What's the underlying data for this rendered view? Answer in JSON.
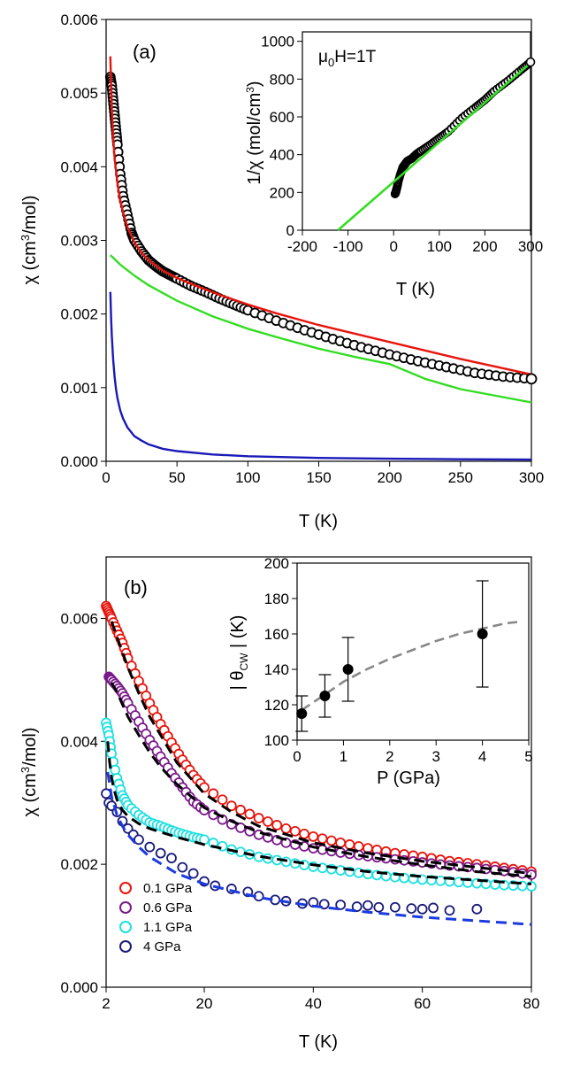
{
  "chart_data": [
    {
      "panel": "(a)",
      "type": "line",
      "xlabel": "T (K)",
      "ylabel_parts": {
        "chi": "χ",
        "unit_open": " (cm",
        "exp": "3",
        "unit_close": "/mol)"
      },
      "xlim": [
        0,
        300
      ],
      "ylim": [
        0,
        0.006
      ],
      "xticks": [
        "0",
        "50",
        "100",
        "150",
        "200",
        "250",
        "300"
      ],
      "yticks": [
        "0.000",
        "0.001",
        "0.002",
        "0.003",
        "0.004",
        "0.005",
        "0.006"
      ],
      "series": [
        {
          "role": "data",
          "marker": "open-circle",
          "color": "#000000",
          "x": [
            3,
            4,
            5,
            6,
            7,
            8,
            10,
            12,
            15,
            18,
            20,
            25,
            30,
            35,
            40,
            45,
            50,
            60,
            70,
            80,
            90,
            100,
            120,
            140,
            160,
            180,
            200,
            220,
            240,
            260,
            280,
            300
          ],
          "y": [
            0.00522,
            0.0051,
            0.0049,
            0.0047,
            0.0045,
            0.0043,
            0.0039,
            0.0036,
            0.00335,
            0.0031,
            0.003,
            0.00285,
            0.00273,
            0.00265,
            0.00258,
            0.00253,
            0.00248,
            0.00238,
            0.0023,
            0.00221,
            0.00213,
            0.00205,
            0.00191,
            0.00178,
            0.00166,
            0.00155,
            0.00145,
            0.00136,
            0.00128,
            0.0012,
            0.00115,
            0.00112
          ]
        },
        {
          "role": "fit-total",
          "line": "solid",
          "color": "#e8140c",
          "x": [
            3,
            4,
            5,
            6,
            8,
            10,
            12,
            15,
            20,
            25,
            30,
            40,
            50,
            60,
            80,
            100,
            120,
            150,
            200,
            250,
            300
          ],
          "y": [
            0.0055,
            0.0048,
            0.0044,
            0.00412,
            0.00378,
            0.00355,
            0.00338,
            0.00318,
            0.00297,
            0.00283,
            0.00273,
            0.00259,
            0.00249,
            0.00241,
            0.00226,
            0.00213,
            0.00201,
            0.00185,
            0.00162,
            0.00139,
            0.00118
          ]
        },
        {
          "role": "fit-curie-weiss",
          "line": "solid",
          "color": "#33dd22",
          "x": [
            3,
            10,
            20,
            30,
            50,
            75,
            100,
            125,
            150,
            175,
            200,
            225,
            250,
            275,
            300
          ],
          "y": [
            0.0028,
            0.00267,
            0.00252,
            0.00239,
            0.00218,
            0.00197,
            0.0018,
            0.00166,
            0.00153,
            0.00142,
            0.00132,
            0.00112,
            0.00098,
            0.00089,
            0.0008
          ]
        },
        {
          "role": "fit-impurity",
          "line": "solid",
          "color": "#1a1ab8",
          "x": [
            3,
            3.5,
            4,
            5,
            6,
            7,
            8,
            10,
            12,
            15,
            20,
            25,
            30,
            40,
            50,
            75,
            100,
            150,
            200,
            250,
            300
          ],
          "y": [
            0.0023,
            0.00197,
            0.00172,
            0.00138,
            0.00115,
            0.00098,
            0.00086,
            0.00069,
            0.00058,
            0.00046,
            0.00034,
            0.00028,
            0.00023,
            0.00017,
            0.000138,
            9.2e-05,
            6.9e-05,
            4.6e-05,
            3.5e-05,
            2.8e-05,
            2.3e-05
          ]
        }
      ],
      "inset": {
        "annotation": {
          "mu": "μ",
          "sub": "0",
          "rest": "H=1T"
        },
        "xlabel": "T (K)",
        "ylabel_parts": {
          "pre": "1/",
          "chi": "χ",
          "unit_open": "  (mol/cm",
          "exp": "3",
          "unit_close": ")"
        },
        "xlim": [
          -200,
          300
        ],
        "ylim": [
          0,
          1050
        ],
        "xticks": [
          "-200",
          "-100",
          "0",
          "100",
          "200",
          "300"
        ],
        "yticks": [
          "0",
          "200",
          "400",
          "600",
          "800",
          "1000"
        ],
        "series": [
          {
            "role": "data",
            "marker": "open-circle",
            "color": "#000000",
            "x": [
              3,
              4,
              5,
              6,
              8,
              10,
              15,
              20,
              25,
              30,
              40,
              50,
              60,
              80,
              100,
              120,
              150,
              180,
              200,
              220,
              250,
              280,
              300
            ],
            "y": [
              192,
              196,
              204,
              213,
              232,
              256,
              298,
              333,
              350,
              366,
              380,
              403,
              420,
              452,
              488,
              523,
              595,
              652,
              690,
              736,
              790,
              850,
              890
            ]
          },
          {
            "role": "curie-weiss-fit",
            "line": "solid",
            "color": "#33dd22",
            "x": [
              -122,
              300
            ],
            "y": [
              0,
              885
            ]
          }
        ]
      }
    },
    {
      "panel": "(b)",
      "type": "scatter",
      "xlabel": "T (K)",
      "ylabel_parts": {
        "chi": "χ",
        "unit_open": " (cm",
        "exp": "3",
        "unit_close": "/mol)"
      },
      "xlim": [
        2,
        80
      ],
      "ylim": [
        0,
        0.007
      ],
      "xticks": [
        "2",
        "20",
        "40",
        "60",
        "80"
      ],
      "xtick_values": [
        2,
        20,
        40,
        60,
        80
      ],
      "yticks": [
        "0.000",
        "0.002",
        "0.004",
        "0.006"
      ],
      "ytick_values": [
        0,
        0.002,
        0.004,
        0.006
      ],
      "legend_position": "lower-left",
      "series": [
        {
          "name": "0.1 GPa",
          "color": "#e8140c",
          "x": [
            2,
            2.5,
            3,
            4,
            5,
            6,
            8,
            10,
            12,
            14,
            16,
            18,
            20,
            25,
            30,
            35,
            40,
            45,
            50,
            55,
            60,
            65,
            70,
            75,
            80
          ],
          "y": [
            0.0062,
            0.0061,
            0.006,
            0.0058,
            0.0056,
            0.00535,
            0.00498,
            0.00462,
            0.00428,
            0.00398,
            0.0037,
            0.00345,
            0.00325,
            0.00295,
            0.00275,
            0.00258,
            0.00245,
            0.00235,
            0.00226,
            0.00218,
            0.00212,
            0.00205,
            0.002,
            0.00194,
            0.00188
          ]
        },
        {
          "name": "0.6 GPa",
          "color": "#7a1a8a",
          "x": [
            2.5,
            3,
            4,
            5,
            6,
            8,
            10,
            12,
            14,
            16,
            18,
            20,
            25,
            30,
            35,
            40,
            45,
            50,
            55,
            60,
            65,
            70,
            75,
            80
          ],
          "y": [
            0.00505,
            0.005,
            0.0049,
            0.00478,
            0.00462,
            0.00432,
            0.00402,
            0.00375,
            0.00348,
            0.00325,
            0.00302,
            0.00288,
            0.00265,
            0.00248,
            0.00235,
            0.00226,
            0.00219,
            0.00213,
            0.00208,
            0.00203,
            0.00198,
            0.00194,
            0.00189,
            0.00183
          ]
        },
        {
          "name": "1.1 GPa",
          "color": "#1ee0e0",
          "x": [
            2,
            2.5,
            3,
            4,
            5,
            6,
            8,
            10,
            12,
            14,
            16,
            18,
            20,
            25,
            30,
            35,
            40,
            45,
            50,
            55,
            60,
            65,
            70,
            75,
            80
          ],
          "y": [
            0.0043,
            0.0041,
            0.0038,
            0.0034,
            0.00312,
            0.00296,
            0.0028,
            0.00268,
            0.00262,
            0.00255,
            0.00249,
            0.00244,
            0.0024,
            0.00224,
            0.00212,
            0.00204,
            0.00196,
            0.0019,
            0.00184,
            0.00179,
            0.00175,
            0.00172,
            0.00169,
            0.00166,
            0.00164
          ]
        },
        {
          "name": "4 GPa",
          "color": "#1a1a7a",
          "x": [
            2,
            2.5,
            3,
            4,
            5,
            6,
            7,
            8,
            10,
            12,
            14,
            16,
            18,
            20,
            22,
            25,
            28,
            30,
            33,
            35,
            38,
            40,
            42,
            45,
            48,
            50,
            52,
            55,
            58,
            60,
            62,
            65,
            70
          ],
          "y": [
            0.00315,
            0.003,
            0.00295,
            0.00285,
            0.0027,
            0.00258,
            0.00248,
            0.0024,
            0.00228,
            0.00218,
            0.0021,
            0.00195,
            0.00185,
            0.00172,
            0.00165,
            0.0016,
            0.00155,
            0.00148,
            0.00142,
            0.0014,
            0.00136,
            0.00138,
            0.00135,
            0.00134,
            0.00131,
            0.00133,
            0.0013,
            0.0013,
            0.00128,
            0.00127,
            0.00129,
            0.00125,
            0.00127
          ]
        }
      ],
      "fits": [
        {
          "color": "#000000",
          "style": "dashed",
          "x": [
            3,
            4,
            5,
            6,
            8,
            10,
            12,
            15,
            20,
            25,
            30,
            40,
            50,
            60,
            70,
            80
          ],
          "y": [
            0.00595,
            0.0057,
            0.00545,
            0.0052,
            0.00478,
            0.0044,
            0.0041,
            0.00365,
            0.00315,
            0.00285,
            0.00262,
            0.00235,
            0.00218,
            0.00205,
            0.00195,
            0.00185
          ]
        },
        {
          "color": "#000000",
          "style": "dashed",
          "x": [
            3,
            4,
            5,
            6,
            8,
            10,
            12,
            15,
            20,
            25,
            30,
            40,
            50,
            60,
            70,
            80
          ],
          "y": [
            0.00495,
            0.0048,
            0.0046,
            0.0044,
            0.0041,
            0.00382,
            0.00358,
            0.0033,
            0.00292,
            0.0027,
            0.00252,
            0.00228,
            0.00212,
            0.00199,
            0.00188,
            0.0018
          ]
        },
        {
          "color": "#000000",
          "style": "dashed",
          "x": [
            2.3,
            2.6,
            3,
            3.5,
            4,
            5,
            6,
            8,
            10,
            15,
            20,
            30,
            40,
            50,
            60,
            70,
            80
          ],
          "y": [
            0.004,
            0.0037,
            0.0034,
            0.0032,
            0.00305,
            0.00288,
            0.00278,
            0.00266,
            0.00258,
            0.00244,
            0.00232,
            0.00213,
            0.00199,
            0.00188,
            0.0018,
            0.00174,
            0.00168
          ]
        },
        {
          "color": "#1a3ae0",
          "style": "dashed",
          "x": [
            2.3,
            3,
            4,
            5,
            6,
            8,
            10,
            15,
            20,
            30,
            40,
            50,
            60,
            70,
            80
          ],
          "y": [
            0.0035,
            0.0031,
            0.0028,
            0.00262,
            0.00248,
            0.00228,
            0.00212,
            0.00185,
            0.00168,
            0.00146,
            0.00132,
            0.00122,
            0.00114,
            0.00108,
            0.00102
          ]
        }
      ],
      "inset": {
        "xlabel": "P (GPa)",
        "ylabel_parts": {
          "open": "| θ",
          "sub": "CW",
          "close": " | (K)"
        },
        "xlim": [
          0,
          5
        ],
        "ylim": [
          100,
          200
        ],
        "xticks": [
          "0",
          "1",
          "2",
          "3",
          "4",
          "5"
        ],
        "yticks": [
          "100",
          "120",
          "140",
          "160",
          "180",
          "200"
        ],
        "points": {
          "x": [
            0.1,
            0.6,
            1.1,
            4
          ],
          "y": [
            115,
            125,
            140,
            160
          ],
          "err": [
            10,
            12,
            18,
            30
          ]
        },
        "trend": {
          "color": "#888888",
          "style": "dashed",
          "x": [
            0.1,
            0.5,
            1,
            1.5,
            2,
            2.5,
            3,
            3.5,
            4,
            4.5,
            4.85
          ],
          "y": [
            117,
            124,
            133,
            140,
            146,
            151,
            156,
            160,
            163,
            166,
            167
          ]
        }
      }
    }
  ]
}
